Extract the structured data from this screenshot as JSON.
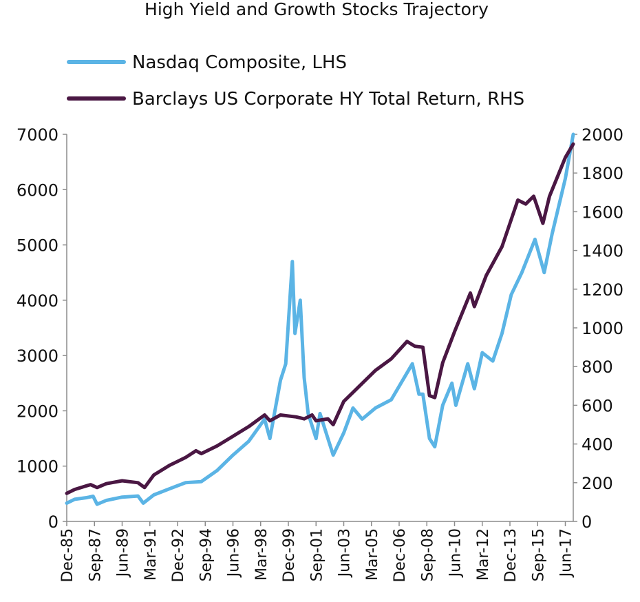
{
  "chart_data": {
    "type": "line",
    "title": "High Yield and Growth Stocks Trajectory",
    "legend_position": "top-left",
    "grid": false,
    "x_tick_labels": [
      "Dec-85",
      "Sep-87",
      "Jun-89",
      "Mar-91",
      "Dec-92",
      "Sep-94",
      "Jun-96",
      "Mar-98",
      "Dec-99",
      "Sep-01",
      "Jun-03",
      "Mar-05",
      "Dec-06",
      "Sep-08",
      "Jun-10",
      "Mar-12",
      "Dec-13",
      "Sep-15",
      "Jun-17"
    ],
    "x_range": [
      "1985-12",
      "2017-12"
    ],
    "y_left": {
      "min": 0,
      "max": 7000,
      "ticks": [
        "0",
        "1000",
        "2000",
        "3000",
        "4000",
        "5000",
        "6000",
        "7000"
      ]
    },
    "y_right": {
      "min": 0,
      "max": 2000,
      "ticks": [
        "0",
        "200",
        "400",
        "600",
        "800",
        "1000",
        "1200",
        "1400",
        "1600",
        "1800",
        "2000"
      ]
    },
    "series": [
      {
        "name": "Nasdaq Composite, LHS",
        "axis": "left",
        "color": "#5bb4e5",
        "points": [
          [
            "1985-12",
            330
          ],
          [
            "1986-06",
            400
          ],
          [
            "1987-03",
            430
          ],
          [
            "1987-08",
            455
          ],
          [
            "1987-11",
            310
          ],
          [
            "1988-06",
            380
          ],
          [
            "1989-06",
            440
          ],
          [
            "1990-06",
            460
          ],
          [
            "1990-10",
            330
          ],
          [
            "1991-06",
            480
          ],
          [
            "1992-06",
            590
          ],
          [
            "1993-06",
            700
          ],
          [
            "1994-06",
            720
          ],
          [
            "1995-06",
            920
          ],
          [
            "1996-06",
            1200
          ],
          [
            "1997-06",
            1450
          ],
          [
            "1998-06",
            1850
          ],
          [
            "1998-10",
            1500
          ],
          [
            "1999-06",
            2550
          ],
          [
            "1999-10",
            2850
          ],
          [
            "2000-03",
            4700
          ],
          [
            "2000-05",
            3400
          ],
          [
            "2000-09",
            4000
          ],
          [
            "2000-12",
            2600
          ],
          [
            "2001-03",
            1950
          ],
          [
            "2001-09",
            1500
          ],
          [
            "2001-12",
            1950
          ],
          [
            "2002-06",
            1500
          ],
          [
            "2002-10",
            1200
          ],
          [
            "2003-06",
            1600
          ],
          [
            "2004-01",
            2050
          ],
          [
            "2004-08",
            1850
          ],
          [
            "2005-06",
            2050
          ],
          [
            "2006-06",
            2200
          ],
          [
            "2007-10",
            2850
          ],
          [
            "2008-03",
            2300
          ],
          [
            "2008-06",
            2300
          ],
          [
            "2008-11",
            1500
          ],
          [
            "2009-03",
            1350
          ],
          [
            "2009-09",
            2100
          ],
          [
            "2010-04",
            2500
          ],
          [
            "2010-07",
            2100
          ],
          [
            "2011-04",
            2850
          ],
          [
            "2011-09",
            2400
          ],
          [
            "2012-03",
            3050
          ],
          [
            "2012-11",
            2900
          ],
          [
            "2013-06",
            3400
          ],
          [
            "2014-01",
            4100
          ],
          [
            "2014-09",
            4500
          ],
          [
            "2015-07",
            5100
          ],
          [
            "2016-02",
            4500
          ],
          [
            "2016-08",
            5200
          ],
          [
            "2017-06",
            6200
          ],
          [
            "2017-12",
            7000
          ]
        ]
      },
      {
        "name": "Barclays US Corporate HY Total Return, RHS",
        "axis": "right",
        "color": "#4a1743",
        "points": [
          [
            "1985-12",
            145
          ],
          [
            "1986-06",
            165
          ],
          [
            "1987-06",
            190
          ],
          [
            "1987-11",
            175
          ],
          [
            "1988-06",
            195
          ],
          [
            "1989-06",
            210
          ],
          [
            "1990-06",
            200
          ],
          [
            "1990-11",
            175
          ],
          [
            "1991-06",
            240
          ],
          [
            "1992-06",
            290
          ],
          [
            "1993-06",
            330
          ],
          [
            "1994-02",
            365
          ],
          [
            "1994-06",
            350
          ],
          [
            "1995-06",
            390
          ],
          [
            "1996-06",
            440
          ],
          [
            "1997-06",
            490
          ],
          [
            "1998-06",
            550
          ],
          [
            "1998-10",
            520
          ],
          [
            "1999-06",
            550
          ],
          [
            "2000-06",
            540
          ],
          [
            "2000-12",
            530
          ],
          [
            "2001-06",
            550
          ],
          [
            "2001-09",
            520
          ],
          [
            "2002-06",
            530
          ],
          [
            "2002-10",
            500
          ],
          [
            "2003-06",
            620
          ],
          [
            "2004-06",
            700
          ],
          [
            "2005-06",
            780
          ],
          [
            "2006-06",
            840
          ],
          [
            "2007-06",
            930
          ],
          [
            "2007-12",
            905
          ],
          [
            "2008-06",
            900
          ],
          [
            "2008-11",
            650
          ],
          [
            "2009-03",
            640
          ],
          [
            "2009-09",
            820
          ],
          [
            "2010-06",
            980
          ],
          [
            "2011-06",
            1180
          ],
          [
            "2011-09",
            1110
          ],
          [
            "2012-06",
            1270
          ],
          [
            "2013-06",
            1420
          ],
          [
            "2014-06",
            1660
          ],
          [
            "2014-12",
            1640
          ],
          [
            "2015-06",
            1680
          ],
          [
            "2016-01",
            1540
          ],
          [
            "2016-06",
            1680
          ],
          [
            "2017-06",
            1880
          ],
          [
            "2017-12",
            1950
          ]
        ]
      }
    ]
  }
}
